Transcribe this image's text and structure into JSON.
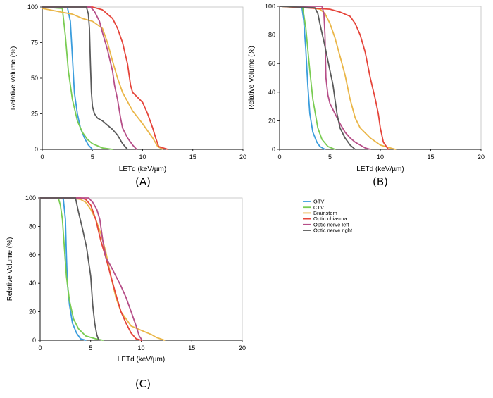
{
  "figure": {
    "legend": [
      {
        "name": "GTV",
        "color": "#3a9ddd"
      },
      {
        "name": "CTV",
        "color": "#79cc52"
      },
      {
        "name": "Brainstem",
        "color": "#eab648"
      },
      {
        "name": "Optic chiasma",
        "color": "#e5443a"
      },
      {
        "name": "Optic nerve left",
        "color": "#b64e88"
      },
      {
        "name": "Optic nerve right",
        "color": "#5a5a5a"
      }
    ]
  },
  "chart_data": [
    {
      "type": "line",
      "panel_label": "(A)",
      "xlabel": "LETd (keV/µm)",
      "ylabel": "Relative Volume (%)",
      "xlim": [
        0,
        20
      ],
      "ylim": [
        0,
        100
      ],
      "xticks": [
        "0",
        "5",
        "10",
        "15",
        "20"
      ],
      "yticks": [
        "0",
        "25",
        "50",
        "75",
        "100"
      ],
      "grid": false,
      "series": [
        {
          "name": "GTV",
          "x": [
            0,
            2.5,
            2.8,
            3.0,
            3.2,
            3.5,
            3.8,
            4.2,
            4.6,
            5.0
          ],
          "y": [
            100,
            100,
            90,
            65,
            40,
            25,
            15,
            8,
            3,
            0
          ]
        },
        {
          "name": "CTV",
          "x": [
            0,
            2.0,
            2.3,
            2.6,
            3.0,
            3.5,
            4.0,
            4.5,
            5.0,
            6.0,
            7.0
          ],
          "y": [
            100,
            99,
            80,
            55,
            35,
            20,
            12,
            7,
            4,
            1,
            0
          ]
        },
        {
          "name": "Brainstem",
          "x": [
            0,
            3,
            4,
            5,
            6,
            6.5,
            7,
            7.5,
            8,
            9,
            10,
            11,
            11.5,
            12
          ],
          "y": [
            99,
            95,
            92,
            90,
            85,
            75,
            62,
            50,
            40,
            27,
            18,
            8,
            2,
            0
          ]
        },
        {
          "name": "Optic chiasma",
          "x": [
            0,
            5,
            5.5,
            6,
            7,
            7.5,
            8,
            8.5,
            8.8,
            9,
            10,
            10.5,
            11,
            11.3,
            11.6,
            12.5
          ],
          "y": [
            100,
            100,
            99,
            98,
            92,
            85,
            75,
            60,
            45,
            40,
            33,
            25,
            15,
            8,
            2,
            0
          ]
        },
        {
          "name": "Optic nerve left",
          "x": [
            0,
            4.8,
            5.2,
            5.7,
            6,
            6.5,
            7,
            7.2,
            7.5,
            7.8,
            8,
            8.5,
            9,
            9.4
          ],
          "y": [
            100,
            100,
            97,
            90,
            82,
            70,
            55,
            45,
            35,
            22,
            15,
            8,
            3,
            0
          ]
        },
        {
          "name": "Optic nerve right",
          "x": [
            0,
            4.4,
            4.6,
            4.7,
            4.8,
            4.9,
            5.0,
            5.2,
            5.5,
            6,
            6.5,
            7,
            7.5,
            8,
            8.5
          ],
          "y": [
            100,
            100,
            95,
            85,
            60,
            40,
            30,
            25,
            22,
            20,
            17,
            14,
            10,
            4,
            0
          ]
        }
      ]
    },
    {
      "type": "line",
      "panel_label": "(B)",
      "xlabel": "LETd (keV/µm)",
      "ylabel": "Relative Volume (%)",
      "xlim": [
        0,
        20
      ],
      "ylim": [
        0,
        100
      ],
      "xticks": [
        "0",
        "5",
        "10",
        "15",
        "20"
      ],
      "yticks": [
        "0",
        "20",
        "40",
        "60",
        "80",
        "100"
      ],
      "grid": false,
      "series": [
        {
          "name": "GTV",
          "x": [
            0,
            2.2,
            2.4,
            2.6,
            2.8,
            3.0,
            3.3,
            3.7,
            4.0,
            4.5
          ],
          "y": [
            100,
            100,
            90,
            70,
            45,
            25,
            12,
            5,
            2,
            0
          ]
        },
        {
          "name": "CTV",
          "x": [
            0,
            2.3,
            2.6,
            3.0,
            3.3,
            3.8,
            4.2,
            4.8,
            5.5
          ],
          "y": [
            100,
            99,
            85,
            55,
            35,
            15,
            7,
            2,
            0
          ]
        },
        {
          "name": "Brainstem",
          "x": [
            0,
            3,
            4,
            4.5,
            5,
            5.5,
            6,
            6.5,
            7,
            7.5,
            8,
            9,
            10,
            11,
            11.5
          ],
          "y": [
            100,
            99,
            98,
            95,
            88,
            78,
            65,
            52,
            35,
            22,
            15,
            8,
            3,
            1,
            0
          ]
        },
        {
          "name": "Optic chiasma",
          "x": [
            0,
            5,
            6,
            7,
            7.5,
            8,
            8.5,
            9,
            9.5,
            9.8,
            10,
            10.3,
            10.8
          ],
          "y": [
            100,
            98,
            96,
            93,
            88,
            80,
            68,
            50,
            35,
            25,
            15,
            5,
            0
          ]
        },
        {
          "name": "Optic nerve left",
          "x": [
            0,
            4.2,
            4.4,
            4.5,
            4.6,
            4.8,
            5.0,
            5.5,
            6,
            6.5,
            7,
            7.5,
            8,
            8.5,
            9
          ],
          "y": [
            100,
            100,
            95,
            80,
            50,
            38,
            32,
            25,
            18,
            12,
            8,
            5,
            3,
            1,
            0
          ]
        },
        {
          "name": "Optic nerve right",
          "x": [
            0,
            3.5,
            3.8,
            4,
            4.5,
            5,
            5.3,
            5.5,
            5.7,
            6,
            6.5,
            7,
            7.5
          ],
          "y": [
            100,
            99,
            95,
            88,
            72,
            55,
            45,
            35,
            25,
            15,
            8,
            3,
            0
          ]
        }
      ]
    },
    {
      "type": "line",
      "panel_label": "(C)",
      "xlabel": "LETd (keV/µm)",
      "ylabel": "Relative Volume (%)",
      "xlim": [
        0,
        20
      ],
      "ylim": [
        0,
        100
      ],
      "xticks": [
        "0",
        "5",
        "10",
        "15",
        "20"
      ],
      "yticks": [
        "0",
        "20",
        "40",
        "60",
        "80",
        "100"
      ],
      "grid": false,
      "series": [
        {
          "name": "GTV",
          "x": [
            0,
            2.1,
            2.3,
            2.5,
            2.6,
            2.7,
            2.9,
            3.2,
            3.6,
            4.0,
            4.5
          ],
          "y": [
            100,
            100,
            99,
            85,
            60,
            40,
            25,
            12,
            5,
            1,
            0
          ]
        },
        {
          "name": "CTV",
          "x": [
            0,
            1.8,
            2.0,
            2.2,
            2.4,
            2.6,
            2.9,
            3.3,
            3.8,
            4.5,
            5.5,
            6.2
          ],
          "y": [
            100,
            100,
            95,
            85,
            65,
            45,
            28,
            15,
            8,
            3,
            1,
            0
          ]
        },
        {
          "name": "Brainstem",
          "x": [
            0,
            3,
            4,
            4.5,
            5,
            5.5,
            6,
            6.5,
            7,
            7.5,
            8,
            8.5,
            9,
            10,
            11,
            11.5,
            12.3
          ],
          "y": [
            100,
            100,
            99,
            97,
            92,
            85,
            75,
            62,
            45,
            30,
            20,
            15,
            10,
            7,
            4,
            2,
            0
          ]
        },
        {
          "name": "Optic chiasma",
          "x": [
            0,
            4,
            4.5,
            5,
            5.5,
            6,
            6.5,
            7,
            7.5,
            8,
            8.5,
            9,
            9.5,
            10
          ],
          "y": [
            100,
            100,
            99,
            95,
            85,
            70,
            58,
            45,
            32,
            20,
            12,
            5,
            1,
            0
          ]
        },
        {
          "name": "Optic nerve left",
          "x": [
            0,
            4.8,
            5.2,
            5.6,
            5.9,
            6.2,
            6.5,
            7,
            7.5,
            8,
            8.5,
            9,
            9.5,
            9.8,
            10.1
          ],
          "y": [
            100,
            100,
            97,
            92,
            85,
            70,
            58,
            52,
            45,
            38,
            30,
            20,
            10,
            3,
            0
          ]
        },
        {
          "name": "Optic nerve right",
          "x": [
            0,
            3.5,
            3.8,
            4.2,
            4.6,
            5,
            5.2,
            5.4,
            5.6,
            5.8
          ],
          "y": [
            100,
            100,
            90,
            78,
            65,
            45,
            25,
            12,
            4,
            0
          ]
        }
      ]
    }
  ]
}
